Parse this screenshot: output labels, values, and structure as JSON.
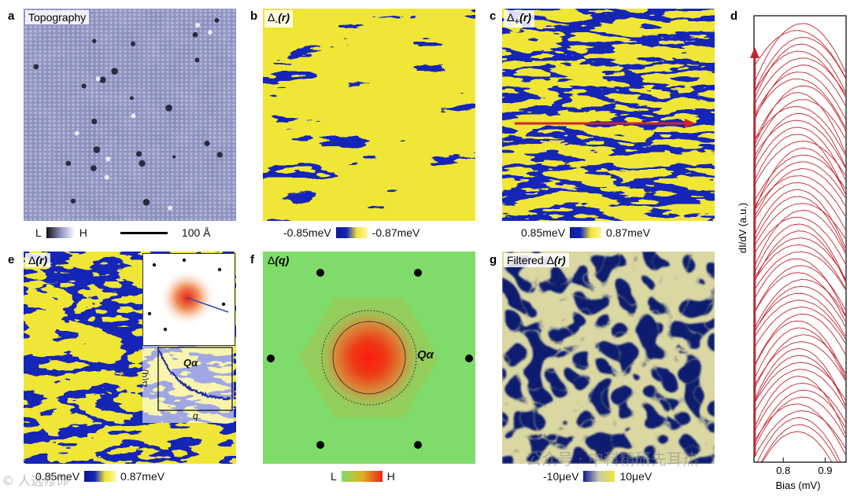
{
  "panels": {
    "a": {
      "letter": "a",
      "label": "Topography"
    },
    "b": {
      "letter": "b",
      "label_base": "Δ",
      "label_sub": "-",
      "label_arg": "(r)"
    },
    "c": {
      "letter": "c",
      "label_base": "Δ",
      "label_sub": "+",
      "label_arg": "(r)"
    },
    "d": {
      "letter": "d"
    },
    "e": {
      "letter": "e",
      "label_base": "Δ",
      "label_arg": "(r)"
    },
    "f": {
      "letter": "f",
      "label_base": "Δ",
      "label_arg": "(q)",
      "q_alpha": "Qα"
    },
    "g": {
      "letter": "g",
      "label_pre": "Filtered Δ",
      "label_arg": "(r)"
    }
  },
  "colorbars": {
    "a": {
      "low": "L",
      "high": "H",
      "scale": "100 Å"
    },
    "b": {
      "low": "-0.85meV",
      "high": "-0.87meV"
    },
    "c": {
      "low": "0.85meV",
      "high": "0.87meV"
    },
    "e": {
      "low": "0.85meV",
      "high": "0.87meV"
    },
    "f": {
      "low": "L",
      "high": "H"
    },
    "g": {
      "low": "-10μeV",
      "high": "10μeV"
    }
  },
  "inset_e": {
    "ylabel": "Δ(q)",
    "xlabel": "q",
    "q_alpha": "Qα"
  },
  "chart_data": {
    "type": "line",
    "title": "",
    "xlabel": "Bias (mV)",
    "ylabel": "dI/dV (a.u.)",
    "x_ticks": [
      "0.8",
      "0.9"
    ],
    "series_count": 60,
    "color": "#c0262d"
  },
  "colors": {
    "topo_base": "#8c90bf",
    "gap_low": "#1525b8",
    "gap_high": "#f0e636",
    "fft_bg": "#7fdc6a",
    "fft_center": "#e8251b",
    "curve": "#c0262d"
  },
  "watermarks": [
    "公众号 · 中科精研先耳热",
    "© 人选修饰"
  ]
}
